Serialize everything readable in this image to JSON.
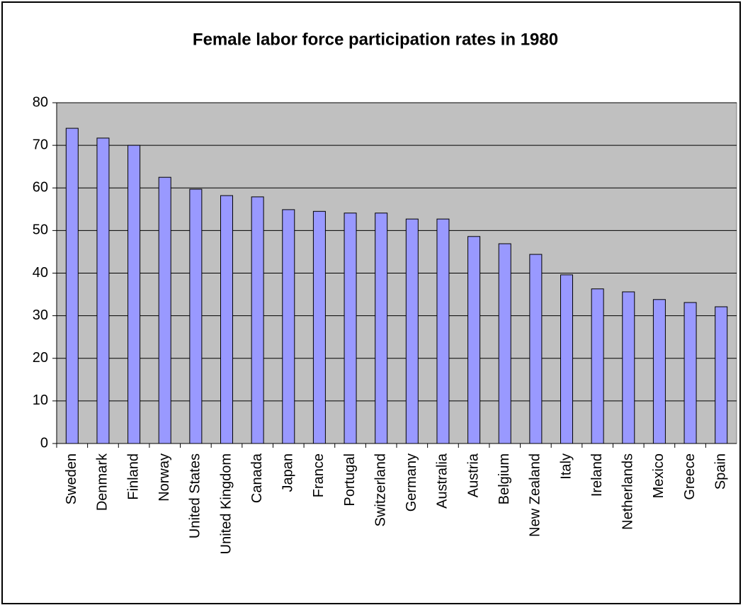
{
  "chart_data": {
    "type": "bar",
    "title": "Female labor force participation rates in 1980",
    "categories": [
      "Sweden",
      "Denmark",
      "Finland",
      "Norway",
      "United States",
      "United Kingdom",
      "Canada",
      "Japan",
      "France",
      "Portugal",
      "Switzerland",
      "Germany",
      "Australia",
      "Austria",
      "Belgium",
      "New Zealand",
      "Italy",
      "Ireland",
      "Netherlands",
      "Mexico",
      "Greece",
      "Spain"
    ],
    "values": [
      74.0,
      71.7,
      70.0,
      62.5,
      59.7,
      58.2,
      57.9,
      54.9,
      54.5,
      54.1,
      54.1,
      52.7,
      52.7,
      48.6,
      46.9,
      44.4,
      39.6,
      36.3,
      35.6,
      33.8,
      33.1,
      32.1
    ],
    "color": "#9999ff",
    "ylim": [
      0,
      80
    ],
    "yticks": [
      0,
      10,
      20,
      30,
      40,
      50,
      60,
      70,
      80
    ],
    "grid": true
  }
}
